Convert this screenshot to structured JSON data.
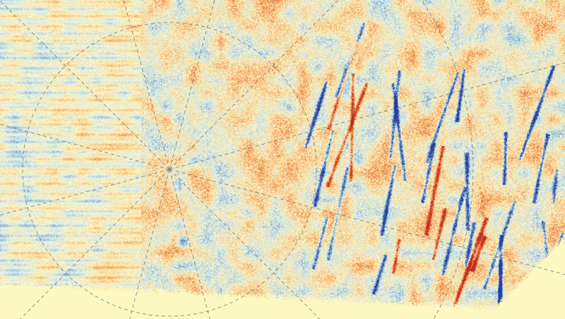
{
  "figure": {
    "type": "polar-projected heatmap",
    "colormap": [
      "#2a3c9a",
      "#6a9fd0",
      "#cfe7f2",
      "#fdf8c2",
      "#f9c27a",
      "#e86a3a",
      "#c0271e"
    ],
    "background_color": "#fdf8c2",
    "grid": {
      "style": "dashed",
      "color": "#7a7a7a",
      "spoke_count": 12,
      "circle_count": 2
    }
  }
}
